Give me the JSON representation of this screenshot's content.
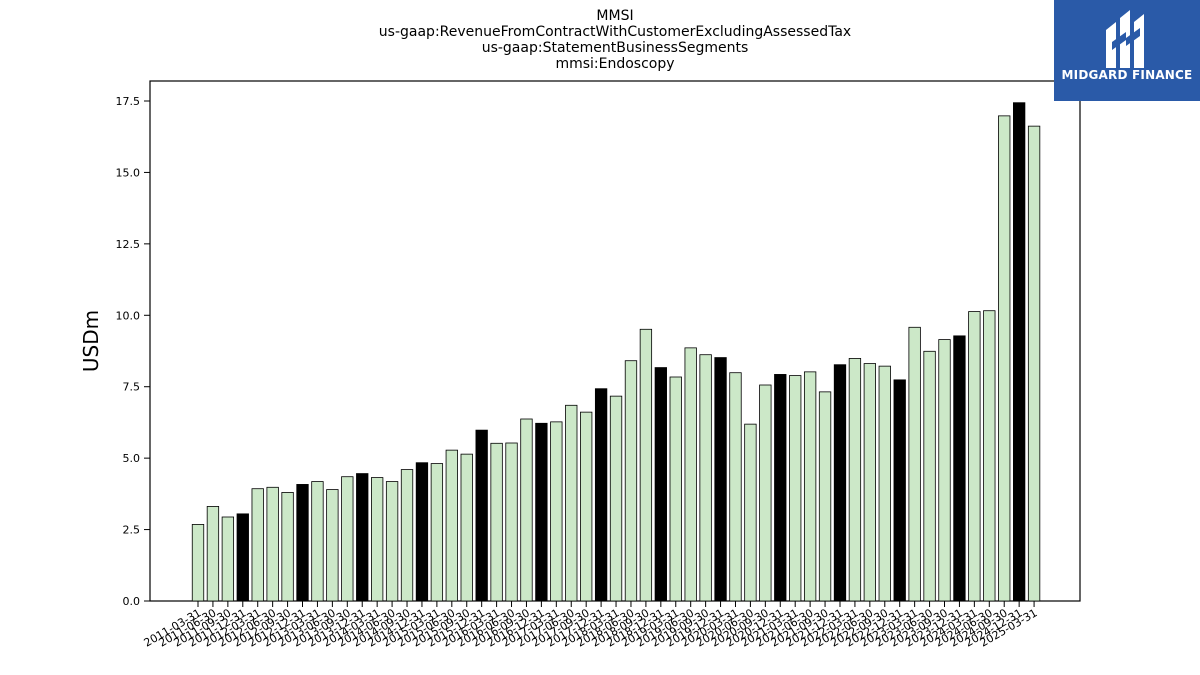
{
  "header": {
    "title_lines": [
      "MMSI",
      "us-gaap:RevenueFromContractWithCustomerExcludingAssessedTax",
      "us-gaap:StatementBusinessSegments",
      "mmsi:Endoscopy"
    ]
  },
  "brand": {
    "name": "MIDGARD FINANCE",
    "color": "#2a5aa8"
  },
  "colors": {
    "annual_bar": "#000000",
    "quarter_bar": "#cce8c8",
    "bar_edge": "#000000"
  },
  "chart_data": {
    "type": "bar",
    "ylabel": "USDm",
    "xlabel": "",
    "ylim": [
      0,
      18.2
    ],
    "yticks": [
      0.0,
      2.5,
      5.0,
      7.5,
      10.0,
      12.5,
      15.0,
      17.5
    ],
    "ytick_labels": [
      "0.0",
      "2.5",
      "5.0",
      "7.5",
      "10.0",
      "12.5",
      "15.0",
      "17.5"
    ],
    "categories": [
      "2011-03-31",
      "2011-06-30",
      "2011-09-30",
      "2011-12-31",
      "2012-03-31",
      "2012-06-30",
      "2012-09-30",
      "2012-12-31",
      "2013-03-31",
      "2013-06-30",
      "2013-09-30",
      "2013-12-31",
      "2014-03-31",
      "2014-06-30",
      "2014-09-30",
      "2014-12-31",
      "2015-03-31",
      "2015-06-30",
      "2015-09-30",
      "2015-12-31",
      "2016-03-31",
      "2016-06-30",
      "2016-09-30",
      "2016-12-31",
      "2017-03-31",
      "2017-06-30",
      "2017-09-30",
      "2017-12-31",
      "2018-03-31",
      "2018-06-30",
      "2018-09-30",
      "2018-12-31",
      "2019-03-31",
      "2019-06-30",
      "2019-09-30",
      "2019-12-31",
      "2020-03-31",
      "2020-06-30",
      "2020-09-30",
      "2020-12-31",
      "2021-03-31",
      "2021-06-30",
      "2021-09-30",
      "2021-12-31",
      "2022-03-31",
      "2022-06-30",
      "2022-09-30",
      "2022-12-31",
      "2023-03-31",
      "2023-06-30",
      "2023-09-30",
      "2023-12-31",
      "2024-03-31",
      "2024-06-30",
      "2024-09-30",
      "2024-12-31",
      "2025-03-31"
    ],
    "xtick_labels": [
      "2011-03-31",
      "2011-06-30",
      "2011-09-30",
      "2011-12-31",
      "2012-03-31",
      "2012-06-30",
      "2012-09-30",
      "2012-12-31",
      "2013-03-31",
      "2013-06-30",
      "2013-09-30",
      "2013-12-31",
      "2014-03-31",
      "2014-06-30",
      "2014-09-30",
      "2014-12-31",
      "2015-03-31",
      "2015-06-30",
      "2015-09-30",
      "2015-12-31",
      "2016-03-31",
      "2016-06-30",
      "2016-09-30",
      "2016-12-31",
      "2017-03-31",
      "2017-06-30",
      "2017-09-30",
      "2017-12-31",
      "2018-03-31",
      "2018-06-30",
      "2018-09-30",
      "2018-12-31",
      "2019-03-31",
      "2019-06-30",
      "2019-09-30",
      "2019-12-31",
      "2020-03-31",
      "2020-06-30",
      "2020-09-30",
      "2020-12-31",
      "2021-03-31",
      "2021-06-30",
      "2021-09-30",
      "2021-12-31",
      "2022-03-31",
      "2022-06-30",
      "2022-09-30",
      "2022-12-31",
      "2023-03-31",
      "2023-06-30",
      "2023-09-30",
      "2023-12-31",
      "2024-03-31",
      "2024-06-30",
      "2024-09-30",
      "2024-12-31",
      "2025-03-31"
    ],
    "values": [
      2.68,
      3.31,
      2.94,
      3.05,
      3.93,
      3.98,
      3.8,
      4.08,
      4.18,
      3.9,
      4.35,
      4.46,
      4.32,
      4.18,
      4.6,
      4.84,
      4.81,
      5.28,
      5.14,
      5.98,
      5.52,
      5.53,
      6.37,
      6.22,
      6.27,
      6.85,
      6.61,
      7.43,
      7.17,
      8.41,
      9.51,
      8.17,
      7.84,
      8.86,
      8.62,
      8.52,
      7.99,
      6.19,
      7.56,
      7.93,
      7.89,
      8.02,
      7.32,
      8.27,
      8.49,
      8.31,
      8.22,
      7.74,
      9.58,
      8.74,
      9.15,
      9.28,
      10.13,
      10.16,
      16.98,
      17.44,
      16.62
    ],
    "highlight_q4_annual": true
  }
}
